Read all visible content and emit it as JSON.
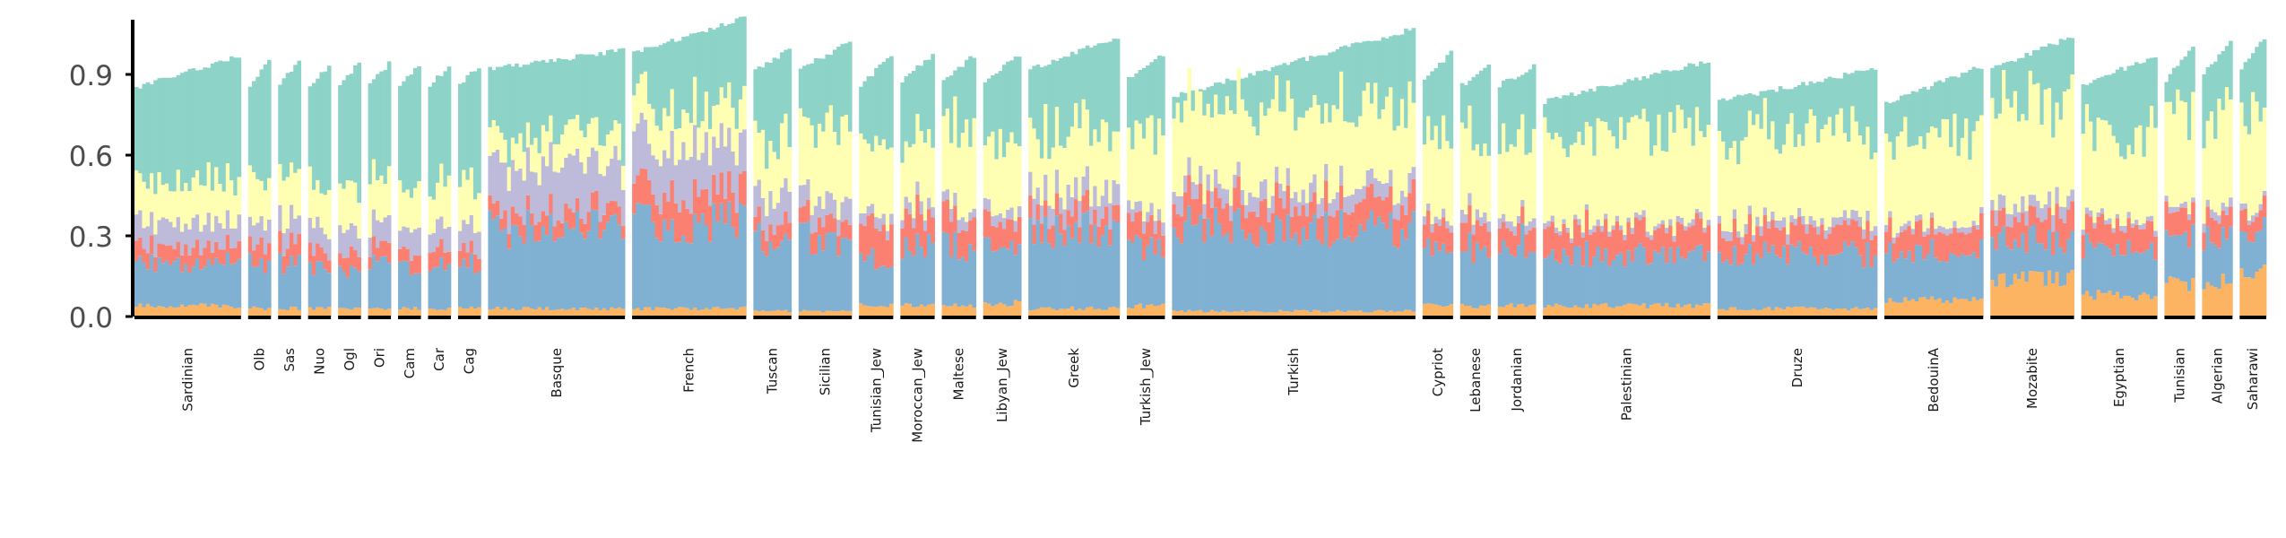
{
  "chart_data": {
    "type": "bar",
    "stacked": true,
    "normalized": true,
    "ylim": [
      0,
      1.1
    ],
    "yticks": [
      0.0,
      0.3,
      0.6,
      0.9
    ],
    "ytick_labels": [
      "0.0",
      "0.3",
      "0.6",
      "0.9"
    ],
    "grid": false,
    "legend": "none",
    "colors": [
      "#fdb462",
      "#80b1d3",
      "#fb8072",
      "#bebada",
      "#ffffb3",
      "#8dd3c7"
    ],
    "populations": [
      {
        "name": "Sardinian",
        "n": 28,
        "top": [
          0.85,
          0.97
        ],
        "comp": [
          0.04,
          0.16,
          0.06,
          0.09,
          0.15
        ]
      },
      {
        "name": "Olb",
        "n": 6,
        "top": [
          0.86,
          0.95
        ],
        "comp": [
          0.03,
          0.17,
          0.07,
          0.09,
          0.16
        ]
      },
      {
        "name": "Sas",
        "n": 6,
        "top": [
          0.86,
          0.95
        ],
        "comp": [
          0.03,
          0.17,
          0.07,
          0.09,
          0.16
        ]
      },
      {
        "name": "Nuo",
        "n": 6,
        "top": [
          0.86,
          0.93
        ],
        "comp": [
          0.03,
          0.15,
          0.06,
          0.09,
          0.16
        ]
      },
      {
        "name": "Ogl",
        "n": 6,
        "top": [
          0.86,
          0.94
        ],
        "comp": [
          0.03,
          0.15,
          0.06,
          0.09,
          0.16
        ]
      },
      {
        "name": "Ori",
        "n": 6,
        "top": [
          0.86,
          0.94
        ],
        "comp": [
          0.03,
          0.16,
          0.06,
          0.09,
          0.16
        ]
      },
      {
        "name": "Cam",
        "n": 6,
        "top": [
          0.86,
          0.94
        ],
        "comp": [
          0.03,
          0.16,
          0.06,
          0.09,
          0.16
        ]
      },
      {
        "name": "Car",
        "n": 6,
        "top": [
          0.86,
          0.93
        ],
        "comp": [
          0.03,
          0.16,
          0.06,
          0.09,
          0.16
        ]
      },
      {
        "name": "Cag",
        "n": 6,
        "top": [
          0.86,
          0.93
        ],
        "comp": [
          0.03,
          0.16,
          0.06,
          0.09,
          0.16
        ]
      },
      {
        "name": "Basque",
        "n": 36,
        "top": [
          0.92,
          0.99
        ],
        "comp": [
          0.03,
          0.3,
          0.06,
          0.17,
          0.11
        ]
      },
      {
        "name": "French",
        "n": 30,
        "top": [
          0.98,
          1.11
        ],
        "comp": [
          0.03,
          0.32,
          0.12,
          0.18,
          0.15
        ]
      },
      {
        "name": "Tuscan",
        "n": 10,
        "top": [
          0.92,
          0.99
        ],
        "comp": [
          0.02,
          0.27,
          0.07,
          0.11,
          0.21
        ]
      },
      {
        "name": "Sicilian",
        "n": 14,
        "top": [
          0.92,
          1.02
        ],
        "comp": [
          0.02,
          0.27,
          0.07,
          0.08,
          0.27
        ]
      },
      {
        "name": "Tunisian_Jew",
        "n": 9,
        "top": [
          0.86,
          0.97
        ],
        "comp": [
          0.04,
          0.18,
          0.13,
          0.04,
          0.26
        ]
      },
      {
        "name": "Moroccan_Jew",
        "n": 9,
        "top": [
          0.88,
          0.97
        ],
        "comp": [
          0.04,
          0.22,
          0.12,
          0.04,
          0.26
        ]
      },
      {
        "name": "Maltese",
        "n": 9,
        "top": [
          0.88,
          0.97
        ],
        "comp": [
          0.04,
          0.22,
          0.11,
          0.04,
          0.31
        ]
      },
      {
        "name": "Libyan_Jew",
        "n": 10,
        "top": [
          0.88,
          0.97
        ],
        "comp": [
          0.05,
          0.2,
          0.09,
          0.04,
          0.26
        ]
      },
      {
        "name": "Greek",
        "n": 24,
        "top": [
          0.92,
          1.04
        ],
        "comp": [
          0.03,
          0.29,
          0.07,
          0.08,
          0.23
        ]
      },
      {
        "name": "Turkish_Jew",
        "n": 10,
        "top": [
          0.88,
          0.97
        ],
        "comp": [
          0.04,
          0.22,
          0.09,
          0.04,
          0.29
        ]
      },
      {
        "name": "Turkish",
        "n": 64,
        "top": [
          0.82,
          1.07
        ],
        "comp": [
          0.02,
          0.31,
          0.1,
          0.06,
          0.3
        ]
      },
      {
        "name": "Cypriot",
        "n": 8,
        "top": [
          0.88,
          0.98
        ],
        "comp": [
          0.04,
          0.2,
          0.09,
          0.03,
          0.3
        ]
      },
      {
        "name": "Lebanese",
        "n": 8,
        "top": [
          0.86,
          0.93
        ],
        "comp": [
          0.04,
          0.22,
          0.09,
          0.04,
          0.28
        ]
      },
      {
        "name": "Jordanian",
        "n": 10,
        "top": [
          0.86,
          0.93
        ],
        "comp": [
          0.04,
          0.24,
          0.08,
          0.03,
          0.27
        ]
      },
      {
        "name": "Palestinian",
        "n": 44,
        "top": [
          0.8,
          0.95
        ],
        "comp": [
          0.04,
          0.19,
          0.1,
          0.02,
          0.33
        ]
      },
      {
        "name": "Druze",
        "n": 42,
        "top": [
          0.8,
          0.92
        ],
        "comp": [
          0.03,
          0.2,
          0.09,
          0.03,
          0.33
        ]
      },
      {
        "name": "BedouinA",
        "n": 26,
        "top": [
          0.79,
          0.93
        ],
        "comp": [
          0.06,
          0.18,
          0.09,
          0.02,
          0.33
        ]
      },
      {
        "name": "Mozabite",
        "n": 22,
        "top": [
          0.92,
          1.04
        ],
        "comp": [
          0.14,
          0.14,
          0.09,
          0.05,
          0.38
        ]
      },
      {
        "name": "Egyptian",
        "n": 20,
        "top": [
          0.86,
          0.97
        ],
        "comp": [
          0.08,
          0.17,
          0.09,
          0.02,
          0.33
        ]
      },
      {
        "name": "Tunisian",
        "n": 8,
        "top": [
          0.88,
          1.01
        ],
        "comp": [
          0.12,
          0.17,
          0.09,
          0.02,
          0.35
        ]
      },
      {
        "name": "Algerian",
        "n": 8,
        "top": [
          0.9,
          1.02
        ],
        "comp": [
          0.13,
          0.17,
          0.08,
          0.03,
          0.36
        ]
      },
      {
        "name": "Saharawi",
        "n": 7,
        "top": [
          0.92,
          1.04
        ],
        "comp": [
          0.16,
          0.15,
          0.07,
          0.02,
          0.38
        ]
      }
    ]
  }
}
